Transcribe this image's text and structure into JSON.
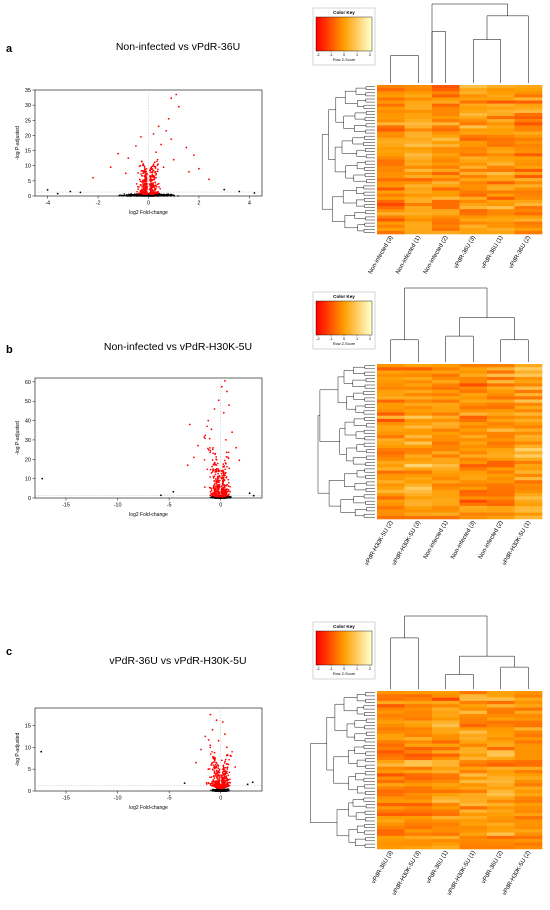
{
  "colors": {
    "significant_points": "#ff0000",
    "other_points": "#000000",
    "heat_low": "#ff0000",
    "heat_mid": "#ff9d00",
    "heat_high": "#ffffcc",
    "threshold_line": "#bdbdbd"
  },
  "chart_data": [
    {
      "panel": "a",
      "type": "scatter",
      "title": "Non-infected vs vPdR-36U",
      "xlabel": "log2 Fold-change",
      "ylabel": "-log P-adjusted",
      "xlim": [
        -4.5,
        4.5
      ],
      "ylim": [
        0,
        35
      ],
      "xticks": [
        -4,
        -2,
        0,
        2,
        4
      ],
      "yticks": [
        0,
        5,
        10,
        15,
        20,
        25,
        30,
        35
      ],
      "threshold_y": 1.3,
      "threshold_x": 0,
      "highlight_points": [
        [
          1.1,
          33.5
        ],
        [
          0.9,
          32.3
        ],
        [
          1.2,
          29.5
        ],
        [
          0.8,
          25.5
        ],
        [
          0.4,
          23.0
        ],
        [
          0.7,
          21.5
        ],
        [
          0.9,
          18.8
        ],
        [
          0.2,
          20.5
        ],
        [
          -0.3,
          19.5
        ],
        [
          -0.5,
          16.5
        ],
        [
          0.5,
          17.0
        ],
        [
          1.5,
          16.0
        ],
        [
          1.8,
          13.5
        ],
        [
          -1.2,
          14.0
        ],
        [
          -0.8,
          12.5
        ],
        [
          0.3,
          14.5
        ],
        [
          1.0,
          12.0
        ],
        [
          -1.5,
          9.5
        ],
        [
          2.0,
          9.0
        ],
        [
          -2.2,
          6.0
        ],
        [
          2.4,
          5.5
        ],
        [
          1.6,
          8.0
        ],
        [
          -0.9,
          7.5
        ],
        [
          0.6,
          9.5
        ]
      ],
      "extreme_points": [
        [
          -4.0,
          2.0
        ],
        [
          -3.1,
          1.5
        ],
        [
          -2.7,
          1.2
        ],
        [
          3.6,
          1.5
        ],
        [
          4.2,
          1.0
        ],
        [
          3.0,
          2.1
        ],
        [
          -3.6,
          0.8
        ]
      ]
    },
    {
      "panel": "b",
      "type": "scatter",
      "title": "Non-infected vs vPdR-H30K-5U",
      "xlabel": "log2 Fold-change",
      "ylabel": "-log P-adjusted",
      "xlim": [
        -18,
        4
      ],
      "ylim": [
        0,
        62
      ],
      "xticks": [
        -15,
        -10,
        -5,
        0
      ],
      "yticks": [
        0,
        10,
        20,
        30,
        40,
        50,
        60
      ],
      "threshold_y": 1.3,
      "threshold_x": 0,
      "highlight_points": [
        [
          0.4,
          60.5
        ],
        [
          0.1,
          57.5
        ],
        [
          0.6,
          55.0
        ],
        [
          -0.2,
          50.5
        ],
        [
          0.8,
          48.0
        ],
        [
          -0.6,
          46.0
        ],
        [
          0.3,
          44.0
        ],
        [
          -1.2,
          40.0
        ],
        [
          -3.0,
          38.0
        ],
        [
          -0.9,
          35.5
        ],
        [
          1.1,
          34.0
        ],
        [
          -1.6,
          31.5
        ],
        [
          0.5,
          30.0
        ],
        [
          -2.2,
          27.0
        ],
        [
          1.5,
          26.0
        ],
        [
          -1.0,
          24.5
        ],
        [
          -2.6,
          21.0
        ],
        [
          1.8,
          19.5
        ],
        [
          -3.2,
          17.0
        ]
      ],
      "extreme_points": [
        [
          -17.3,
          10.0
        ],
        [
          -4.6,
          3.2
        ],
        [
          -5.8,
          1.4
        ],
        [
          2.8,
          2.5
        ],
        [
          3.2,
          1.2
        ]
      ]
    },
    {
      "panel": "c",
      "type": "scatter",
      "title": "vPdR-36U vs vPdR-H30K-5U",
      "xlabel": "log2 Fold-change",
      "ylabel": "-log P-adjusted",
      "xlim": [
        -18,
        4
      ],
      "ylim": [
        0,
        19
      ],
      "xticks": [
        -15,
        -10,
        -5,
        0
      ],
      "yticks": [
        0,
        5,
        10,
        15
      ],
      "threshold_y": 1.3,
      "threshold_x": 0,
      "highlight_points": [
        [
          -1.0,
          17.5
        ],
        [
          -0.4,
          16.2
        ],
        [
          0.2,
          15.8
        ],
        [
          -0.8,
          14.0
        ],
        [
          0.4,
          13.0
        ],
        [
          -1.5,
          12.5
        ],
        [
          -0.2,
          11.5
        ],
        [
          0.6,
          10.0
        ],
        [
          -1.9,
          9.5
        ],
        [
          -0.6,
          8.8
        ],
        [
          1.0,
          8.0
        ],
        [
          -2.4,
          6.5
        ],
        [
          0.1,
          7.0
        ],
        [
          1.4,
          5.5
        ],
        [
          -1.2,
          5.0
        ]
      ],
      "extreme_points": [
        [
          -17.4,
          9.0
        ],
        [
          -3.5,
          1.8
        ],
        [
          2.6,
          1.5
        ],
        [
          3.1,
          2.0
        ]
      ]
    }
  ],
  "heatmaps": [
    {
      "panel": "a",
      "columns": [
        "Non-infected (3)",
        "Non-infected (1)",
        "Non-infected (2)",
        "vPdR-36U (3)",
        "vPdR-36U (1)",
        "vPdR-36U (2)"
      ],
      "seed": 11
    },
    {
      "panel": "b",
      "columns": [
        "vPdR-H30K-5U (2)",
        "vPdR-H30K-5U (3)",
        "Non-infected (1)",
        "Non-infected (3)",
        "Non-infected (2)",
        "vPdR-H30K-5U (1)"
      ],
      "seed": 23
    },
    {
      "panel": "c",
      "columns": [
        "vPdR-36U (3)",
        "vPdR-H30K-5U (3)",
        "vPdR-36U (1)",
        "vPdR-H30K-5U (1)",
        "vPdR-36U (2)",
        "vPdR-H30K-5U (2)"
      ],
      "seed": 37
    }
  ],
  "color_key": {
    "title": "Color Key",
    "label": "Row Z-Score",
    "ticks": [
      "-2",
      "-1",
      "0",
      "1",
      "2"
    ]
  }
}
